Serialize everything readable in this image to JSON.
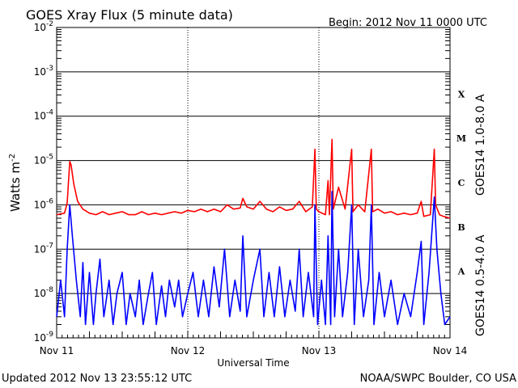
{
  "chart_data": {
    "type": "line",
    "title": "GOES Xray Flux (5 minute data)",
    "begin_label": "Begin:  2012 Nov 11 0000 UTC",
    "xlabel": "Universal Time",
    "ylabel": "Watts m",
    "ylabel_superscript": "-2",
    "y_scale": "log",
    "ylim": [
      1e-09,
      0.01
    ],
    "y_ticks": [
      {
        "base": "10",
        "exp": "-9",
        "value": 1e-09
      },
      {
        "base": "10",
        "exp": "-8",
        "value": 1e-08
      },
      {
        "base": "10",
        "exp": "-7",
        "value": 1e-07
      },
      {
        "base": "10",
        "exp": "-6",
        "value": 1e-06
      },
      {
        "base": "10",
        "exp": "-5",
        "value": 1e-05
      },
      {
        "base": "10",
        "exp": "-4",
        "value": 0.0001
      },
      {
        "base": "10",
        "exp": "-3",
        "value": 0.001
      },
      {
        "base": "10",
        "exp": "-2",
        "value": 0.01
      }
    ],
    "x_ticks": [
      {
        "label": "Nov 11",
        "day": 0
      },
      {
        "label": "Nov 12",
        "day": 1
      },
      {
        "label": "Nov 13",
        "day": 2
      },
      {
        "label": "Nov 14",
        "day": 3
      }
    ],
    "xlim_days": [
      0,
      3
    ],
    "flare_classes": [
      {
        "label": "A",
        "value": 3.16e-08
      },
      {
        "label": "B",
        "value": 3.16e-07
      },
      {
        "label": "C",
        "value": 3.16e-06
      },
      {
        "label": "M",
        "value": 3.16e-05
      },
      {
        "label": "X",
        "value": 0.000316
      }
    ],
    "grid": true,
    "series": [
      {
        "name": "GOES14 1.0-8.0 A",
        "color": "#ff0000",
        "points": [
          [
            0.0,
            6e-07
          ],
          [
            0.06,
            6.5e-07
          ],
          [
            0.08,
            1.1e-06
          ],
          [
            0.1,
            9.5e-06
          ],
          [
            0.11,
            8e-06
          ],
          [
            0.13,
            3e-06
          ],
          [
            0.16,
            1.2e-06
          ],
          [
            0.2,
            8e-07
          ],
          [
            0.25,
            6.5e-07
          ],
          [
            0.3,
            6e-07
          ],
          [
            0.35,
            7e-07
          ],
          [
            0.4,
            6e-07
          ],
          [
            0.45,
            6.5e-07
          ],
          [
            0.5,
            7e-07
          ],
          [
            0.55,
            6e-07
          ],
          [
            0.6,
            6e-07
          ],
          [
            0.65,
            7e-07
          ],
          [
            0.7,
            6e-07
          ],
          [
            0.75,
            6.5e-07
          ],
          [
            0.8,
            6e-07
          ],
          [
            0.85,
            6.5e-07
          ],
          [
            0.9,
            7e-07
          ],
          [
            0.95,
            6.5e-07
          ],
          [
            1.0,
            7.5e-07
          ],
          [
            1.05,
            7e-07
          ],
          [
            1.1,
            8e-07
          ],
          [
            1.15,
            7e-07
          ],
          [
            1.2,
            8e-07
          ],
          [
            1.25,
            7e-07
          ],
          [
            1.3,
            1e-06
          ],
          [
            1.35,
            8e-07
          ],
          [
            1.4,
            8.5e-07
          ],
          [
            1.42,
            1.4e-06
          ],
          [
            1.45,
            9e-07
          ],
          [
            1.5,
            8e-07
          ],
          [
            1.55,
            1.2e-06
          ],
          [
            1.6,
            8e-07
          ],
          [
            1.65,
            7e-07
          ],
          [
            1.7,
            9e-07
          ],
          [
            1.75,
            7.5e-07
          ],
          [
            1.8,
            8e-07
          ],
          [
            1.85,
            1.2e-06
          ],
          [
            1.9,
            7e-07
          ],
          [
            1.95,
            9e-07
          ],
          [
            1.97,
            1.8e-05
          ],
          [
            1.98,
            8e-07
          ],
          [
            2.0,
            7e-07
          ],
          [
            2.05,
            6e-07
          ],
          [
            2.07,
            3.5e-06
          ],
          [
            2.08,
            6e-07
          ],
          [
            2.1,
            3e-05
          ],
          [
            2.11,
            8e-07
          ],
          [
            2.15,
            2.5e-06
          ],
          [
            2.2,
            8e-07
          ],
          [
            2.25,
            1.8e-05
          ],
          [
            2.26,
            7e-07
          ],
          [
            2.3,
            1e-06
          ],
          [
            2.35,
            7e-07
          ],
          [
            2.4,
            1.8e-05
          ],
          [
            2.41,
            7e-07
          ],
          [
            2.45,
            8e-07
          ],
          [
            2.5,
            6.5e-07
          ],
          [
            2.55,
            7e-07
          ],
          [
            2.6,
            6e-07
          ],
          [
            2.65,
            6.5e-07
          ],
          [
            2.7,
            6e-07
          ],
          [
            2.75,
            6.5e-07
          ],
          [
            2.78,
            1.2e-06
          ],
          [
            2.8,
            5.5e-07
          ],
          [
            2.85,
            6e-07
          ],
          [
            2.88,
            1.8e-05
          ],
          [
            2.89,
            1e-06
          ],
          [
            2.92,
            6e-07
          ],
          [
            2.95,
            5.5e-07
          ],
          [
            3.0,
            5e-07
          ]
        ]
      },
      {
        "name": "GOES14 0.5-4.0 A",
        "color": "#0000ff",
        "points": [
          [
            0.0,
            3e-09
          ],
          [
            0.03,
            2e-08
          ],
          [
            0.06,
            3e-09
          ],
          [
            0.08,
            1e-07
          ],
          [
            0.1,
            1e-06
          ],
          [
            0.12,
            2e-07
          ],
          [
            0.15,
            2e-08
          ],
          [
            0.18,
            3e-09
          ],
          [
            0.2,
            5e-08
          ],
          [
            0.22,
            2e-09
          ],
          [
            0.25,
            3e-08
          ],
          [
            0.28,
            2e-09
          ],
          [
            0.3,
            1e-08
          ],
          [
            0.33,
            6e-08
          ],
          [
            0.36,
            3e-09
          ],
          [
            0.4,
            2e-08
          ],
          [
            0.43,
            2e-09
          ],
          [
            0.46,
            1e-08
          ],
          [
            0.5,
            3e-08
          ],
          [
            0.53,
            2e-09
          ],
          [
            0.56,
            1e-08
          ],
          [
            0.6,
            3e-09
          ],
          [
            0.63,
            2e-08
          ],
          [
            0.66,
            2e-09
          ],
          [
            0.7,
            1e-08
          ],
          [
            0.73,
            3e-08
          ],
          [
            0.76,
            2e-09
          ],
          [
            0.8,
            1.5e-08
          ],
          [
            0.83,
            3e-09
          ],
          [
            0.86,
            2e-08
          ],
          [
            0.9,
            5e-09
          ],
          [
            0.93,
            2e-08
          ],
          [
            0.96,
            3e-09
          ],
          [
            1.0,
            1e-08
          ],
          [
            1.04,
            3e-08
          ],
          [
            1.08,
            3e-09
          ],
          [
            1.12,
            2e-08
          ],
          [
            1.16,
            3e-09
          ],
          [
            1.2,
            4e-08
          ],
          [
            1.24,
            5e-09
          ],
          [
            1.28,
            1e-07
          ],
          [
            1.32,
            3e-09
          ],
          [
            1.36,
            2e-08
          ],
          [
            1.4,
            4e-09
          ],
          [
            1.42,
            2e-07
          ],
          [
            1.45,
            3e-09
          ],
          [
            1.5,
            2e-08
          ],
          [
            1.55,
            1e-07
          ],
          [
            1.58,
            3e-09
          ],
          [
            1.62,
            3e-08
          ],
          [
            1.66,
            3e-09
          ],
          [
            1.7,
            4e-08
          ],
          [
            1.74,
            3e-09
          ],
          [
            1.78,
            2e-08
          ],
          [
            1.82,
            4e-09
          ],
          [
            1.85,
            1e-07
          ],
          [
            1.88,
            3e-09
          ],
          [
            1.92,
            3e-08
          ],
          [
            1.96,
            3e-09
          ],
          [
            1.97,
            1e-06
          ],
          [
            1.99,
            2e-09
          ],
          [
            2.02,
            2e-08
          ],
          [
            2.05,
            2e-09
          ],
          [
            2.07,
            2e-07
          ],
          [
            2.09,
            2e-09
          ],
          [
            2.1,
            2e-06
          ],
          [
            2.12,
            3e-09
          ],
          [
            2.15,
            1e-07
          ],
          [
            2.18,
            3e-09
          ],
          [
            2.22,
            3e-08
          ],
          [
            2.25,
            1e-06
          ],
          [
            2.27,
            2e-09
          ],
          [
            2.3,
            1e-07
          ],
          [
            2.34,
            3e-09
          ],
          [
            2.38,
            2e-08
          ],
          [
            2.4,
            1e-06
          ],
          [
            2.42,
            2e-09
          ],
          [
            2.46,
            3e-08
          ],
          [
            2.5,
            3e-09
          ],
          [
            2.55,
            2e-08
          ],
          [
            2.6,
            2e-09
          ],
          [
            2.65,
            1e-08
          ],
          [
            2.7,
            3e-09
          ],
          [
            2.75,
            3e-08
          ],
          [
            2.78,
            1.5e-07
          ],
          [
            2.8,
            2e-09
          ],
          [
            2.84,
            3e-08
          ],
          [
            2.88,
            1.5e-06
          ],
          [
            2.9,
            1e-07
          ],
          [
            2.93,
            1e-08
          ],
          [
            2.96,
            2e-09
          ],
          [
            3.0,
            3e-09
          ]
        ]
      }
    ]
  },
  "footer": {
    "updated": "Updated 2012 Nov 13 23:55:12 UTC",
    "credit": "NOAA/SWPC Boulder, CO USA"
  }
}
